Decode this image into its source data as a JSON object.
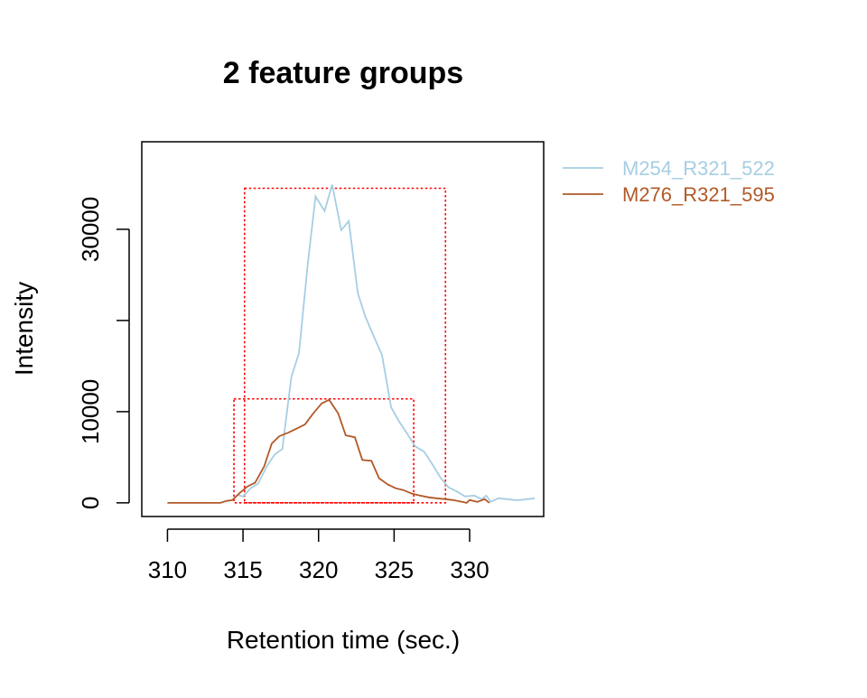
{
  "chart_data": {
    "type": "line",
    "title": "2 feature groups",
    "xlabel": "Retention time (sec.)",
    "ylabel": "Intensity",
    "xlim": [
      308.3,
      334.9
    ],
    "ylim": [
      -1500,
      39600
    ],
    "x_ticks": [
      310,
      315,
      320,
      325,
      330
    ],
    "y_ticks": [
      0,
      10000,
      20000,
      30000
    ],
    "y_tick_labels": [
      "0",
      "10000",
      "",
      "30000"
    ],
    "grid": false,
    "legend_position": "top-right (outside plot area)",
    "series": [
      {
        "name": "M254_R321_522",
        "color": "#a6cee3",
        "x": [
          314.6,
          315.0,
          315.5,
          316.0,
          316.6,
          317.1,
          317.6,
          318.2,
          318.7,
          319.3,
          319.8,
          320.4,
          320.9,
          321.5,
          322.0,
          322.6,
          323.1,
          323.7,
          324.2,
          324.8,
          325.3,
          325.9,
          326.4,
          327.0,
          327.5,
          328.1,
          328.6,
          329.2,
          329.7,
          330.3,
          330.8,
          331.1,
          331.4,
          331.9,
          332.5,
          333.0,
          333.3,
          333.8,
          334.3
        ],
        "y": [
          900,
          700,
          1600,
          2100,
          4100,
          5300,
          5900,
          13800,
          16400,
          26400,
          33600,
          32000,
          34900,
          29900,
          30900,
          23000,
          20400,
          18100,
          16200,
          10500,
          9000,
          7500,
          6200,
          5600,
          4300,
          2700,
          1700,
          1200,
          700,
          800,
          400,
          800,
          100,
          500,
          400,
          300,
          300,
          400,
          500
        ]
      },
      {
        "name": "M276_R321_595",
        "color": "#b15928",
        "x": [
          310.0,
          313.5,
          313.9,
          314.3,
          314.8,
          315.3,
          315.8,
          316.4,
          316.9,
          317.4,
          318.0,
          318.5,
          319.1,
          319.6,
          320.2,
          320.7,
          321.3,
          321.8,
          322.4,
          322.9,
          323.5,
          324.0,
          324.6,
          325.1,
          325.6,
          326.2,
          326.7,
          327.3,
          327.8,
          328.4,
          328.9,
          329.5,
          329.8,
          330.0,
          330.5,
          331.0,
          331.3
        ],
        "y": [
          0,
          0,
          200,
          300,
          1100,
          1800,
          2200,
          4000,
          6500,
          7300,
          7700,
          8100,
          8600,
          9700,
          10900,
          11300,
          9800,
          7400,
          7200,
          4700,
          4600,
          2700,
          2000,
          1600,
          1400,
          1000,
          800,
          600,
          500,
          400,
          300,
          100,
          0,
          300,
          100,
          400,
          0
        ]
      }
    ],
    "feature_boxes": [
      {
        "x_range": [
          315.1,
          328.4
        ],
        "y_range": [
          0,
          34500
        ],
        "color": "#ff0000"
      },
      {
        "x_range": [
          314.4,
          326.3
        ],
        "y_range": [
          0,
          11400
        ],
        "color": "#ff0000"
      }
    ]
  }
}
